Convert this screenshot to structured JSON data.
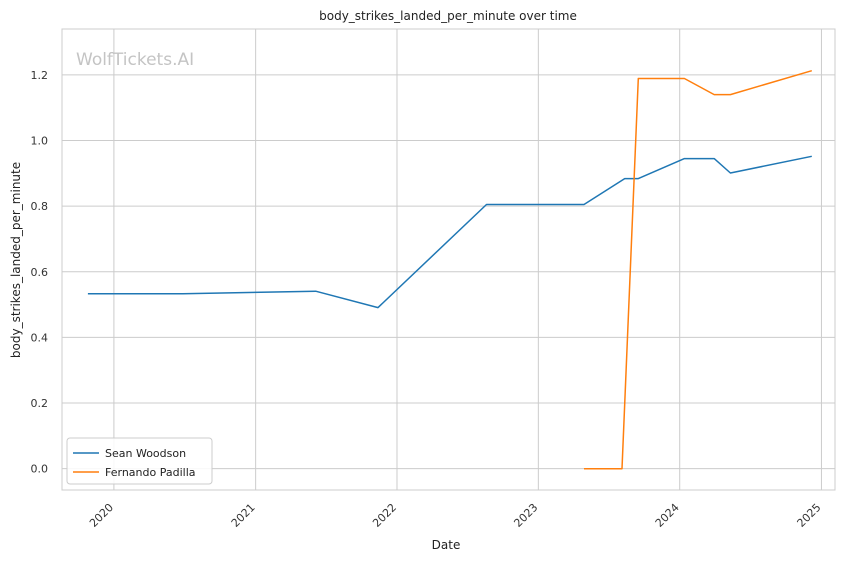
{
  "chart_data": {
    "type": "line",
    "title": "body_strikes_landed_per_minute over time",
    "xlabel": "Date",
    "ylabel": "body_strikes_landed_per_minute",
    "watermark": "WolfTickets.AI",
    "x_ticks": [
      "2020",
      "2021",
      "2022",
      "2023",
      "2024",
      "2025"
    ],
    "y_ticks": [
      "0.0",
      "0.2",
      "0.4",
      "0.6",
      "0.8",
      "1.0",
      "1.2"
    ],
    "xlim": [
      "2019-08-20",
      "2025-02-05"
    ],
    "ylim": [
      -0.065,
      1.34
    ],
    "grid": true,
    "legend_position": "lower-left",
    "series": [
      {
        "name": "Sean Woodson",
        "color": "#1f77b4",
        "points": [
          {
            "x": "2019-10-26",
            "y": 0.533
          },
          {
            "x": "2020-06-27",
            "y": 0.533
          },
          {
            "x": "2021-06-05",
            "y": 0.541
          },
          {
            "x": "2021-11-13",
            "y": 0.491
          },
          {
            "x": "2022-08-20",
            "y": 0.805
          },
          {
            "x": "2023-04-29",
            "y": 0.805
          },
          {
            "x": "2023-08-12",
            "y": 0.884
          },
          {
            "x": "2023-09-16",
            "y": 0.884
          },
          {
            "x": "2024-01-13",
            "y": 0.945
          },
          {
            "x": "2024-03-30",
            "y": 0.945
          },
          {
            "x": "2024-05-11",
            "y": 0.901
          },
          {
            "x": "2024-12-07",
            "y": 0.952
          }
        ]
      },
      {
        "name": "Fernando Padilla",
        "color": "#ff7f0e",
        "points": [
          {
            "x": "2023-04-29",
            "y": 0.0
          },
          {
            "x": "2023-08-05",
            "y": 0.0
          },
          {
            "x": "2023-09-16",
            "y": 1.189
          },
          {
            "x": "2024-01-13",
            "y": 1.189
          },
          {
            "x": "2024-03-30",
            "y": 1.14
          },
          {
            "x": "2024-05-11",
            "y": 1.14
          },
          {
            "x": "2024-12-07",
            "y": 1.213
          }
        ]
      }
    ]
  }
}
